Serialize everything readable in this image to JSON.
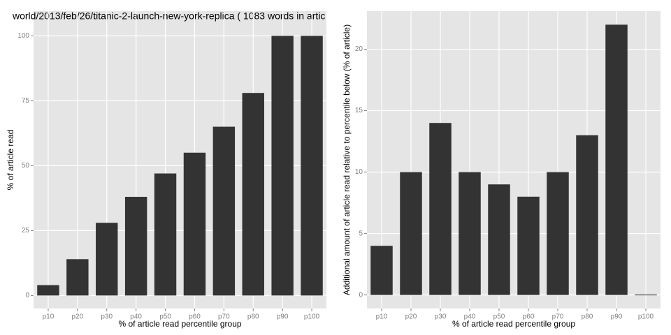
{
  "chart_data": [
    {
      "type": "bar",
      "title": "world/2013/feb/26/titanic-2-launch-new-york-replica ( 1083 words in artic",
      "x_label": "% of article read percentile group",
      "y_label": "% of article read",
      "categories": [
        "p10",
        "p20",
        "p30",
        "p40",
        "p50",
        "p60",
        "p70",
        "p80",
        "p90",
        "p100"
      ],
      "values": [
        4,
        14,
        28,
        38,
        47,
        55,
        65,
        78,
        100,
        100
      ],
      "color": "#333333",
      "ylim": [
        -5,
        109.5
      ],
      "yticks": [
        0,
        25,
        50,
        75,
        100
      ],
      "grid": true
    },
    {
      "type": "bar",
      "x_label": "% of article read percentile group",
      "y_label": "Additional amount of article read relative to percentile below (% of article)",
      "categories": [
        "p10",
        "p20",
        "p30",
        "p40",
        "p50",
        "p60",
        "p70",
        "p80",
        "p90",
        "p100"
      ],
      "values": [
        4,
        10,
        14,
        10,
        9,
        8,
        10,
        13,
        22,
        0
      ],
      "color": "#333333",
      "ylim": [
        -1.1,
        23.1
      ],
      "yticks": [
        0,
        5,
        10,
        15,
        20
      ],
      "grid": true
    }
  ]
}
